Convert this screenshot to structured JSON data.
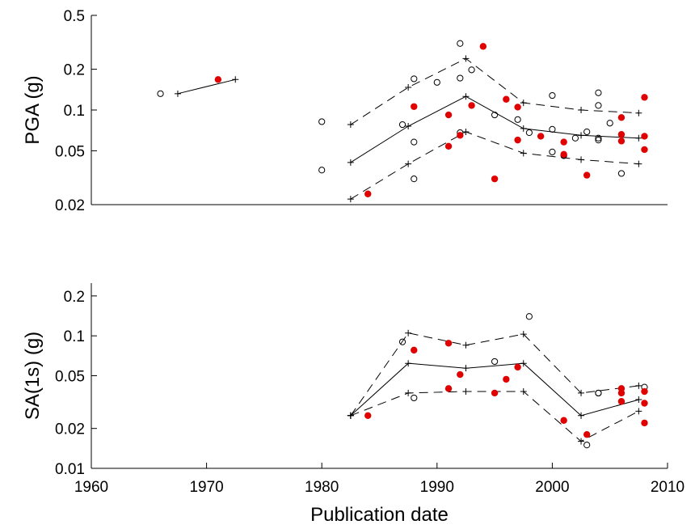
{
  "chart_data": [
    {
      "type": "scatter",
      "ylabel": "PGA (g)",
      "xlabel": "",
      "xlim": [
        1960,
        2010
      ],
      "ylim": [
        0.02,
        0.5
      ],
      "yscale": "log",
      "yticks": [
        0.02,
        0.05,
        0.1,
        0.2,
        0.5
      ],
      "ytick_labels": [
        "0.02",
        "0.05",
        "0.1",
        "0.2",
        "0.5"
      ],
      "xtick_labels_shown": false,
      "grid": false,
      "legend": "none",
      "open_points": [
        [
          1966,
          0.132
        ],
        [
          1980,
          0.082
        ],
        [
          1980,
          0.036
        ],
        [
          1987,
          0.078
        ],
        [
          1988,
          0.17
        ],
        [
          1988,
          0.058
        ],
        [
          1988,
          0.031
        ],
        [
          1990,
          0.16
        ],
        [
          1992,
          0.31
        ],
        [
          1992,
          0.172
        ],
        [
          1992,
          0.068
        ],
        [
          1993,
          0.198
        ],
        [
          1995,
          0.092
        ],
        [
          1997,
          0.085
        ],
        [
          1998,
          0.068
        ],
        [
          2000,
          0.128
        ],
        [
          2000,
          0.072
        ],
        [
          2000,
          0.049
        ],
        [
          2001,
          0.046
        ],
        [
          2002,
          0.062
        ],
        [
          2003,
          0.069
        ],
        [
          2004,
          0.134
        ],
        [
          2004,
          0.108
        ],
        [
          2004,
          0.062
        ],
        [
          2004,
          0.06
        ],
        [
          2005,
          0.08
        ],
        [
          2006,
          0.034
        ]
      ],
      "filled_points": [
        [
          1971,
          0.168
        ],
        [
          1984,
          0.024
        ],
        [
          1988,
          0.106
        ],
        [
          1991,
          0.092
        ],
        [
          1991,
          0.054
        ],
        [
          1992,
          0.065
        ],
        [
          1993,
          0.108
        ],
        [
          1994,
          0.295
        ],
        [
          1995,
          0.031
        ],
        [
          1996,
          0.12
        ],
        [
          1997,
          0.105
        ],
        [
          1997,
          0.06
        ],
        [
          1999,
          0.064
        ],
        [
          2001,
          0.058
        ],
        [
          2001,
          0.047
        ],
        [
          2003,
          0.033
        ],
        [
          2006,
          0.088
        ],
        [
          2006,
          0.066
        ],
        [
          2006,
          0.059
        ],
        [
          2008,
          0.124
        ],
        [
          2008,
          0.064
        ],
        [
          2008,
          0.051
        ]
      ],
      "series": [
        {
          "style": "solid",
          "x": [
            1967.5,
            1972.5
          ],
          "y": [
            0.132,
            0.168
          ]
        },
        {
          "style": "solid",
          "x": [
            1982.5,
            1987.5,
            1992.5,
            1997.5,
            2002.5,
            2007.5
          ],
          "y": [
            0.041,
            0.076,
            0.126,
            0.073,
            0.065,
            0.062
          ]
        },
        {
          "style": "dashed",
          "x": [
            1982.5,
            1987.5,
            1992.5,
            1997.5,
            2002.5,
            2007.5
          ],
          "y": [
            0.078,
            0.147,
            0.24,
            0.113,
            0.1,
            0.095
          ]
        },
        {
          "style": "dashed",
          "x": [
            1982.5,
            1987.5,
            1992.5,
            1997.5,
            2002.5,
            2007.5
          ],
          "y": [
            0.022,
            0.04,
            0.069,
            0.048,
            0.043,
            0.04
          ]
        }
      ]
    },
    {
      "type": "scatter",
      "ylabel": "SA(1s) (g)",
      "xlabel": "Publication date",
      "xlim": [
        1960,
        2010
      ],
      "ylim": [
        0.01,
        0.25
      ],
      "yscale": "log",
      "xticks": [
        1960,
        1970,
        1980,
        1990,
        2000,
        2010
      ],
      "xtick_labels": [
        "1960",
        "1970",
        "1980",
        "1990",
        "2000",
        "2010"
      ],
      "yticks": [
        0.01,
        0.02,
        0.05,
        0.1,
        0.2
      ],
      "ytick_labels": [
        "0.01",
        "0.02",
        "0.05",
        "0.1",
        "0.2"
      ],
      "grid": false,
      "legend": "none",
      "open_points": [
        [
          1987,
          0.09
        ],
        [
          1988,
          0.034
        ],
        [
          1995,
          0.064
        ],
        [
          1998,
          0.14
        ],
        [
          2003,
          0.015
        ],
        [
          2004,
          0.037
        ],
        [
          2004,
          0.037
        ],
        [
          2008,
          0.041
        ]
      ],
      "filled_points": [
        [
          1984,
          0.025
        ],
        [
          1988,
          0.078
        ],
        [
          1991,
          0.088
        ],
        [
          1991,
          0.04
        ],
        [
          1992,
          0.051
        ],
        [
          1995,
          0.037
        ],
        [
          1996,
          0.047
        ],
        [
          1997,
          0.058
        ],
        [
          2001,
          0.023
        ],
        [
          2003,
          0.018
        ],
        [
          2006,
          0.04
        ],
        [
          2006,
          0.037
        ],
        [
          2006,
          0.032
        ],
        [
          2008,
          0.038
        ],
        [
          2008,
          0.031
        ],
        [
          2008,
          0.022
        ]
      ],
      "series": [
        {
          "style": "solid",
          "x": [
            1982.5,
            1987.5,
            1992.5,
            1997.5,
            2002.5,
            2007.5
          ],
          "y": [
            0.025,
            0.062,
            0.057,
            0.062,
            0.025,
            0.033
          ]
        },
        {
          "style": "dashed",
          "x": [
            1982.5,
            1987.5,
            1992.5,
            1997.5,
            2002.5,
            2007.5
          ],
          "y": [
            0.025,
            0.105,
            0.085,
            0.103,
            0.037,
            0.042
          ]
        },
        {
          "style": "dashed",
          "x": [
            1982.5,
            1987.5,
            1992.5,
            1997.5,
            2002.5,
            2007.5
          ],
          "y": [
            0.025,
            0.037,
            0.038,
            0.038,
            0.016,
            0.027
          ]
        }
      ]
    }
  ],
  "colors": {
    "filled_marker": "#e00000",
    "open_marker": "#000000",
    "line": "#000000"
  }
}
